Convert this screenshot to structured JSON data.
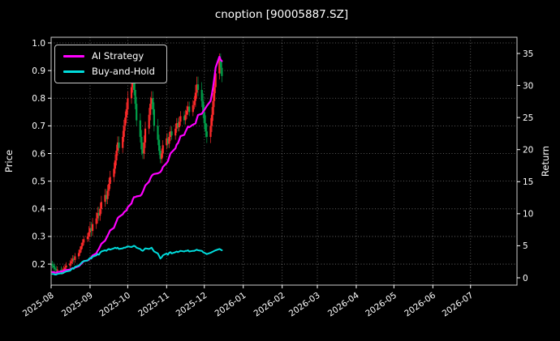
{
  "title": "cnoption [90005887.SZ]",
  "legend": [
    {
      "label": "AI Strategy",
      "color": "#ff00ff"
    },
    {
      "label": "Buy-and-Hold",
      "color": "#00dcdc"
    }
  ],
  "left_axis": {
    "label": "Price"
  },
  "right_axis": {
    "label": "Return"
  },
  "colors": {
    "background": "#000000",
    "text": "#ffffff",
    "grid": "#9a9a9a",
    "frame": "#cccccc",
    "up": "#ff2a2a",
    "down": "#00a04a"
  },
  "chart_data": {
    "type": "candlestick+line",
    "title": "cnoption [90005887.SZ]",
    "grid": true,
    "legend_position": "upper left",
    "price_axis_label": "Price",
    "return_axis_label": "Return",
    "price_range": [
      0.124,
      1.0205
    ],
    "return_range": [
      -1.14,
      37.53
    ],
    "day_range": [
      0,
      371
    ],
    "start_date": "2025-08-01",
    "left_ticks": [
      "0.2",
      "0.3",
      "0.4",
      "0.5",
      "0.6",
      "0.7",
      "0.8",
      "0.9",
      "1.0"
    ],
    "right_ticks": [
      "0",
      "5",
      "10",
      "15",
      "20",
      "25",
      "30",
      "35"
    ],
    "x_ticks": [
      {
        "label": "2025-08",
        "day": 0
      },
      {
        "label": "2025-09",
        "day": 31
      },
      {
        "label": "2025-10",
        "day": 61
      },
      {
        "label": "2025-11",
        "day": 92
      },
      {
        "label": "2025-12",
        "day": 122
      },
      {
        "label": "2026-01",
        "day": 153
      },
      {
        "label": "2026-02",
        "day": 184
      },
      {
        "label": "2026-03",
        "day": 212
      },
      {
        "label": "2026-04",
        "day": 243
      },
      {
        "label": "2026-05",
        "day": 273
      },
      {
        "label": "2026-06",
        "day": 304
      },
      {
        "label": "2026-07",
        "day": 334
      }
    ],
    "candles": [
      [
        0.2,
        0.212,
        0.185,
        0.195
      ],
      [
        0.195,
        0.207,
        0.178,
        0.188
      ],
      [
        0.188,
        0.2,
        0.172,
        0.182
      ],
      [
        0.182,
        0.194,
        0.166,
        0.176
      ],
      [
        0.176,
        0.192,
        0.166,
        0.18
      ],
      [
        0.18,
        0.192,
        0.162,
        0.172
      ],
      [
        0.172,
        0.187,
        0.162,
        0.175
      ],
      [
        0.175,
        0.194,
        0.165,
        0.182
      ],
      [
        0.182,
        0.2,
        0.172,
        0.188
      ],
      [
        0.188,
        0.207,
        0.178,
        0.195
      ],
      [
        0.195,
        0.214,
        0.185,
        0.202
      ],
      [
        0.202,
        0.222,
        0.192,
        0.21
      ],
      [
        0.21,
        0.232,
        0.2,
        0.22
      ],
      [
        0.22,
        0.232,
        0.205,
        0.215
      ],
      [
        0.215,
        0.24,
        0.205,
        0.228
      ],
      [
        0.228,
        0.252,
        0.218,
        0.24
      ],
      [
        0.24,
        0.264,
        0.23,
        0.252
      ],
      [
        0.252,
        0.277,
        0.242,
        0.265
      ],
      [
        0.265,
        0.29,
        0.255,
        0.278
      ],
      [
        0.278,
        0.302,
        0.268,
        0.29
      ],
      [
        0.29,
        0.312,
        0.28,
        0.3
      ],
      [
        0.3,
        0.337,
        0.282,
        0.315
      ],
      [
        0.315,
        0.352,
        0.297,
        0.33
      ],
      [
        0.33,
        0.352,
        0.302,
        0.32
      ],
      [
        0.32,
        0.367,
        0.302,
        0.345
      ],
      [
        0.345,
        0.387,
        0.327,
        0.365
      ],
      [
        0.365,
        0.407,
        0.347,
        0.385
      ],
      [
        0.385,
        0.407,
        0.357,
        0.375
      ],
      [
        0.375,
        0.422,
        0.357,
        0.4
      ],
      [
        0.4,
        0.447,
        0.382,
        0.425
      ],
      [
        0.425,
        0.472,
        0.407,
        0.45
      ],
      [
        0.45,
        0.472,
        0.417,
        0.435
      ],
      [
        0.435,
        0.487,
        0.417,
        0.465
      ],
      [
        0.465,
        0.512,
        0.447,
        0.49
      ],
      [
        0.49,
        0.537,
        0.472,
        0.515
      ],
      [
        0.515,
        0.567,
        0.497,
        0.545
      ],
      [
        0.545,
        0.597,
        0.527,
        0.575
      ],
      [
        0.575,
        0.632,
        0.557,
        0.61
      ],
      [
        0.61,
        0.662,
        0.592,
        0.64
      ],
      [
        0.64,
        0.662,
        0.602,
        0.62
      ],
      [
        0.62,
        0.682,
        0.602,
        0.66
      ],
      [
        0.66,
        0.722,
        0.642,
        0.7
      ],
      [
        0.7,
        0.752,
        0.682,
        0.73
      ],
      [
        0.73,
        0.785,
        0.71,
        0.76
      ],
      [
        0.76,
        0.825,
        0.74,
        0.8
      ],
      [
        0.8,
        0.865,
        0.78,
        0.84
      ],
      [
        0.84,
        0.895,
        0.82,
        0.87
      ],
      [
        0.87,
        0.895,
        0.81,
        0.83
      ],
      [
        0.83,
        0.855,
        0.76,
        0.78
      ],
      [
        0.78,
        0.805,
        0.7,
        0.72
      ],
      [
        0.72,
        0.745,
        0.64,
        0.66
      ],
      [
        0.66,
        0.685,
        0.595,
        0.615
      ],
      [
        0.615,
        0.64,
        0.58,
        0.6
      ],
      [
        0.6,
        0.665,
        0.58,
        0.64
      ],
      [
        0.64,
        0.715,
        0.62,
        0.69
      ],
      [
        0.69,
        0.765,
        0.67,
        0.74
      ],
      [
        0.74,
        0.805,
        0.72,
        0.78
      ],
      [
        0.78,
        0.825,
        0.76,
        0.8
      ],
      [
        0.8,
        0.825,
        0.74,
        0.76
      ],
      [
        0.76,
        0.785,
        0.68,
        0.7
      ],
      [
        0.7,
        0.725,
        0.63,
        0.65
      ],
      [
        0.65,
        0.668,
        0.595,
        0.61
      ],
      [
        0.61,
        0.628,
        0.565,
        0.58
      ],
      [
        0.58,
        0.618,
        0.565,
        0.6
      ],
      [
        0.6,
        0.648,
        0.585,
        0.63
      ],
      [
        0.63,
        0.673,
        0.615,
        0.655
      ],
      [
        0.655,
        0.673,
        0.62,
        0.635
      ],
      [
        0.635,
        0.678,
        0.62,
        0.66
      ],
      [
        0.66,
        0.698,
        0.645,
        0.68
      ],
      [
        0.68,
        0.698,
        0.65,
        0.665
      ],
      [
        0.665,
        0.708,
        0.65,
        0.69
      ],
      [
        0.69,
        0.728,
        0.675,
        0.71
      ],
      [
        0.71,
        0.728,
        0.68,
        0.695
      ],
      [
        0.695,
        0.733,
        0.68,
        0.715
      ],
      [
        0.715,
        0.753,
        0.7,
        0.735
      ],
      [
        0.735,
        0.753,
        0.705,
        0.72
      ],
      [
        0.72,
        0.758,
        0.705,
        0.74
      ],
      [
        0.74,
        0.773,
        0.725,
        0.755
      ],
      [
        0.755,
        0.788,
        0.74,
        0.77
      ],
      [
        0.77,
        0.788,
        0.735,
        0.75
      ],
      [
        0.75,
        0.793,
        0.735,
        0.775
      ],
      [
        0.775,
        0.808,
        0.76,
        0.79
      ],
      [
        0.79,
        0.848,
        0.768,
        0.82
      ],
      [
        0.82,
        0.878,
        0.798,
        0.85
      ],
      [
        0.85,
        0.878,
        0.808,
        0.83
      ],
      [
        0.83,
        0.858,
        0.768,
        0.79
      ],
      [
        0.79,
        0.818,
        0.728,
        0.75
      ],
      [
        0.75,
        0.778,
        0.688,
        0.71
      ],
      [
        0.71,
        0.738,
        0.658,
        0.68
      ],
      [
        0.68,
        0.708,
        0.638,
        0.66
      ],
      [
        0.66,
        0.728,
        0.638,
        0.7
      ],
      [
        0.7,
        0.768,
        0.678,
        0.74
      ],
      [
        0.74,
        0.818,
        0.718,
        0.79
      ],
      [
        0.79,
        0.868,
        0.768,
        0.84
      ],
      [
        0.84,
        0.918,
        0.818,
        0.89
      ],
      [
        0.89,
        0.962,
        0.868,
        0.94
      ],
      [
        0.94,
        0.962,
        0.888,
        0.91
      ],
      [
        0.91,
        0.938,
        0.858,
        0.88
      ]
    ],
    "series": [
      {
        "name": "AI Strategy",
        "axis": "return",
        "color": "#ff00ff",
        "width": 2.2,
        "values": [
          0.9,
          0.9,
          0.8,
          0.8,
          0.9,
          1.0,
          1.0,
          1.1,
          1.2,
          1.2,
          1.3,
          1.4,
          1.5,
          1.5,
          1.6,
          1.8,
          2.0,
          2.2,
          2.4,
          2.6,
          2.7,
          2.8,
          3.0,
          3.2,
          3.5,
          3.8,
          4.2,
          4.5,
          4.9,
          5.3,
          5.8,
          6.2,
          6.6,
          7.0,
          7.4,
          7.8,
          8.3,
          8.8,
          9.3,
          9.5,
          9.9,
          10.2,
          10.4,
          10.5,
          11.0,
          11.6,
          12.2,
          12.6,
          12.6,
          12.7,
          12.8,
          13.0,
          13.4,
          13.9,
          14.4,
          15.0,
          15.5,
          15.9,
          16.1,
          16.2,
          16.3,
          16.4,
          16.5,
          16.8,
          17.3,
          17.9,
          18.2,
          18.8,
          19.4,
          19.6,
          20.2,
          20.8,
          21.0,
          21.5,
          22.1,
          22.3,
          22.8,
          23.2,
          23.6,
          23.5,
          23.9,
          24.0,
          24.1,
          24.8,
          25.4,
          25.6,
          25.9,
          26.2,
          26.5,
          26.8,
          27.6,
          28.6,
          29.8,
          31.2,
          32.8,
          34.5,
          34.0,
          33.8
        ]
      },
      {
        "name": "Buy-and-Hold",
        "axis": "return",
        "color": "#00dcdc",
        "width": 2,
        "values": [
          0.6,
          0.6,
          0.5,
          0.5,
          0.6,
          0.7,
          0.7,
          0.8,
          0.9,
          1.0,
          1.1,
          1.3,
          1.5,
          1.4,
          1.7,
          1.9,
          2.1,
          2.3,
          2.5,
          2.6,
          2.7,
          2.9,
          3.1,
          3.0,
          3.3,
          3.5,
          3.7,
          3.6,
          3.9,
          4.1,
          4.3,
          4.2,
          4.4,
          4.5,
          4.4,
          4.6,
          4.7,
          4.6,
          4.7,
          4.5,
          4.6,
          4.7,
          4.7,
          4.8,
          4.9,
          4.8,
          4.9,
          5.0,
          4.9,
          4.7,
          4.5,
          4.3,
          4.2,
          4.4,
          4.6,
          4.5,
          4.6,
          4.7,
          4.4,
          4.1,
          3.8,
          3.4,
          3.0,
          3.2,
          3.5,
          3.8,
          3.6,
          3.9,
          4.0,
          3.8,
          4.0,
          4.1,
          4.0,
          4.1,
          4.2,
          4.1,
          4.2,
          4.2,
          4.3,
          4.1,
          4.2,
          4.2,
          4.3,
          4.4,
          4.3,
          4.2,
          4.0,
          3.9,
          3.8,
          3.7,
          3.9,
          4.0,
          4.1,
          4.2,
          4.3,
          4.5,
          4.4,
          4.3
        ]
      }
    ]
  }
}
